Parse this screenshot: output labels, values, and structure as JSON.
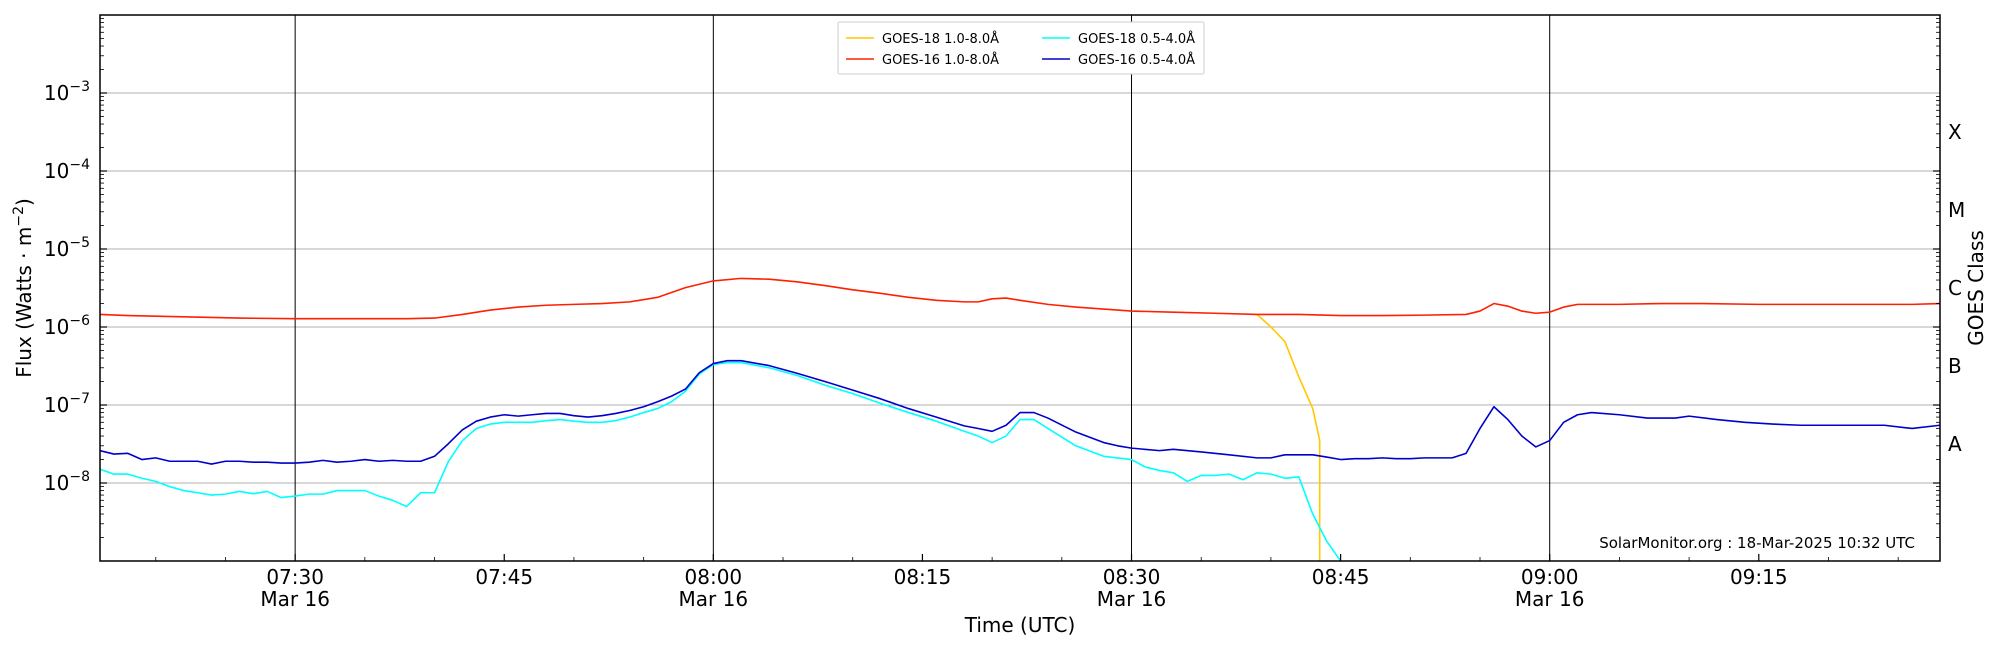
{
  "chart_data": {
    "type": "line",
    "xlabel": "Time (UTC)",
    "ylabel_prefix": "Flux (Watts · m",
    "ylabel_exp": "−2",
    "ylabel_suffix": ")",
    "right_label": "GOES Class",
    "credit": "SolarMonitor.org : 18-Mar-2025 10:32 UTC",
    "x_range_minutes": [
      "07:16",
      "09:28"
    ],
    "y_scale": "log",
    "ylim": [
      1e-09,
      0.01
    ],
    "grid": "horizontal at each decade",
    "legend_position": "top-center",
    "y_ticks": [
      {
        "mantissa": "10",
        "exp": "−8",
        "value": 1e-08
      },
      {
        "mantissa": "10",
        "exp": "−7",
        "value": 1e-07
      },
      {
        "mantissa": "10",
        "exp": "−6",
        "value": 1e-06
      },
      {
        "mantissa": "10",
        "exp": "−5",
        "value": 1e-05
      },
      {
        "mantissa": "10",
        "exp": "−4",
        "value": 0.0001
      },
      {
        "mantissa": "10",
        "exp": "−3",
        "value": 0.001
      }
    ],
    "x_ticks": [
      {
        "time": "07:30",
        "label": "07:30",
        "date": "Mar 16"
      },
      {
        "time": "07:45",
        "label": "07:45",
        "date": ""
      },
      {
        "time": "08:00",
        "label": "08:00",
        "date": "Mar 16"
      },
      {
        "time": "08:15",
        "label": "08:15",
        "date": ""
      },
      {
        "time": "08:30",
        "label": "08:30",
        "date": "Mar 16"
      },
      {
        "time": "08:45",
        "label": "08:45",
        "date": ""
      },
      {
        "time": "09:00",
        "label": "09:00",
        "date": "Mar 16"
      },
      {
        "time": "09:15",
        "label": "09:15",
        "date": ""
      }
    ],
    "vertical_lines": [
      "07:30",
      "08:00",
      "08:30",
      "09:00"
    ],
    "goes_classes": [
      {
        "label": "X",
        "value": 0.0001
      },
      {
        "label": "M",
        "value": 1e-05
      },
      {
        "label": "C",
        "value": 1e-06
      },
      {
        "label": "B",
        "value": 1e-07
      },
      {
        "label": "A",
        "value": 1e-08
      }
    ],
    "series": [
      {
        "name": "GOES-18 1.0-8.0Å",
        "color": "#ffc800",
        "points": [
          [
            "08:39",
            1.45e-06
          ],
          [
            "08:40",
            1e-06
          ],
          [
            "08:41",
            6.5e-07
          ],
          [
            "08:42",
            2.3e-07
          ],
          [
            "08:43",
            9e-08
          ],
          [
            "08:43.5",
            3.5e-08
          ],
          [
            "08:43.5",
            1e-09
          ]
        ]
      },
      {
        "name": "GOES-16 1.0-8.0Å",
        "color": "#ff2000",
        "points": [
          [
            "07:16",
            1.45e-06
          ],
          [
            "07:18",
            1.4e-06
          ],
          [
            "07:22",
            1.35e-06
          ],
          [
            "07:26",
            1.3e-06
          ],
          [
            "07:30",
            1.28e-06
          ],
          [
            "07:34",
            1.28e-06
          ],
          [
            "07:38",
            1.28e-06
          ],
          [
            "07:40",
            1.3e-06
          ],
          [
            "07:42",
            1.45e-06
          ],
          [
            "07:44",
            1.65e-06
          ],
          [
            "07:46",
            1.8e-06
          ],
          [
            "07:48",
            1.9e-06
          ],
          [
            "07:50",
            1.95e-06
          ],
          [
            "07:52",
            2e-06
          ],
          [
            "07:54",
            2.1e-06
          ],
          [
            "07:56",
            2.4e-06
          ],
          [
            "07:58",
            3.2e-06
          ],
          [
            "08:00",
            3.9e-06
          ],
          [
            "08:02",
            4.2e-06
          ],
          [
            "08:04",
            4.1e-06
          ],
          [
            "08:06",
            3.8e-06
          ],
          [
            "08:08",
            3.4e-06
          ],
          [
            "08:10",
            3e-06
          ],
          [
            "08:12",
            2.7e-06
          ],
          [
            "08:14",
            2.4e-06
          ],
          [
            "08:16",
            2.2e-06
          ],
          [
            "08:18",
            2.1e-06
          ],
          [
            "08:19",
            2.1e-06
          ],
          [
            "08:20",
            2.3e-06
          ],
          [
            "08:21",
            2.35e-06
          ],
          [
            "08:22",
            2.2e-06
          ],
          [
            "08:24",
            1.95e-06
          ],
          [
            "08:26",
            1.8e-06
          ],
          [
            "08:28",
            1.7e-06
          ],
          [
            "08:30",
            1.6e-06
          ],
          [
            "08:33",
            1.55e-06
          ],
          [
            "08:36",
            1.5e-06
          ],
          [
            "08:39",
            1.45e-06
          ],
          [
            "08:42",
            1.45e-06
          ],
          [
            "08:45",
            1.4e-06
          ],
          [
            "08:48",
            1.4e-06
          ],
          [
            "08:51",
            1.42e-06
          ],
          [
            "08:54",
            1.45e-06
          ],
          [
            "08:55",
            1.6e-06
          ],
          [
            "08:56",
            2e-06
          ],
          [
            "08:57",
            1.85e-06
          ],
          [
            "08:58",
            1.6e-06
          ],
          [
            "08:59",
            1.5e-06
          ],
          [
            "09:00",
            1.55e-06
          ],
          [
            "09:01",
            1.8e-06
          ],
          [
            "09:02",
            1.95e-06
          ],
          [
            "09:05",
            1.95e-06
          ],
          [
            "09:08",
            2e-06
          ],
          [
            "09:11",
            2e-06
          ],
          [
            "09:15",
            1.95e-06
          ],
          [
            "09:19",
            1.95e-06
          ],
          [
            "09:23",
            1.95e-06
          ],
          [
            "09:26",
            1.95e-06
          ],
          [
            "09:28",
            2e-06
          ]
        ]
      },
      {
        "name": "GOES-18 0.5-4.0Å",
        "color": "#00ffff",
        "points": [
          [
            "07:16",
            1.5e-08
          ],
          [
            "07:17",
            1.3e-08
          ],
          [
            "07:18",
            1.3e-08
          ],
          [
            "07:19",
            1.15e-08
          ],
          [
            "07:20",
            1.05e-08
          ],
          [
            "07:21",
            9e-09
          ],
          [
            "07:22",
            8e-09
          ],
          [
            "07:23",
            7.5e-09
          ],
          [
            "07:24",
            7e-09
          ],
          [
            "07:25",
            7.2e-09
          ],
          [
            "07:26",
            7.8e-09
          ],
          [
            "07:27",
            7.3e-09
          ],
          [
            "07:28",
            7.8e-09
          ],
          [
            "07:29",
            6.5e-09
          ],
          [
            "07:30",
            6.8e-09
          ],
          [
            "07:31",
            7.2e-09
          ],
          [
            "07:32",
            7.2e-09
          ],
          [
            "07:33",
            8e-09
          ],
          [
            "07:34",
            8e-09
          ],
          [
            "07:35",
            8e-09
          ],
          [
            "07:36",
            6.8e-09
          ],
          [
            "07:37",
            6e-09
          ],
          [
            "07:38",
            5e-09
          ],
          [
            "07:39",
            7.5e-09
          ],
          [
            "07:40",
            7.5e-09
          ],
          [
            "07:41",
            1.9e-08
          ],
          [
            "07:42",
            3.5e-08
          ],
          [
            "07:43",
            5e-08
          ],
          [
            "07:44",
            5.7e-08
          ],
          [
            "07:45",
            6e-08
          ],
          [
            "07:46",
            6e-08
          ],
          [
            "07:47",
            6e-08
          ],
          [
            "07:48",
            6.3e-08
          ],
          [
            "07:49",
            6.5e-08
          ],
          [
            "07:50",
            6.2e-08
          ],
          [
            "07:51",
            6e-08
          ],
          [
            "07:52",
            6e-08
          ],
          [
            "07:53",
            6.3e-08
          ],
          [
            "07:54",
            7e-08
          ],
          [
            "07:55",
            8e-08
          ],
          [
            "07:56",
            9e-08
          ],
          [
            "07:57",
            1.1e-07
          ],
          [
            "07:58",
            1.5e-07
          ],
          [
            "07:59",
            2.5e-07
          ],
          [
            "08:00",
            3.3e-07
          ],
          [
            "08:01",
            3.5e-07
          ],
          [
            "08:02",
            3.5e-07
          ],
          [
            "08:04",
            3e-07
          ],
          [
            "08:06",
            2.4e-07
          ],
          [
            "08:08",
            1.8e-07
          ],
          [
            "08:10",
            1.4e-07
          ],
          [
            "08:12",
            1.05e-07
          ],
          [
            "08:14",
            8e-08
          ],
          [
            "08:16",
            6.2e-08
          ],
          [
            "08:18",
            4.6e-08
          ],
          [
            "08:19",
            4e-08
          ],
          [
            "08:20",
            3.3e-08
          ],
          [
            "08:21",
            4e-08
          ],
          [
            "08:22",
            6.5e-08
          ],
          [
            "08:23",
            6.5e-08
          ],
          [
            "08:24",
            5e-08
          ],
          [
            "08:26",
            3e-08
          ],
          [
            "08:28",
            2.2e-08
          ],
          [
            "08:30",
            2e-08
          ],
          [
            "08:31",
            1.6e-08
          ],
          [
            "08:32",
            1.45e-08
          ],
          [
            "08:33",
            1.35e-08
          ],
          [
            "08:34",
            1.05e-08
          ],
          [
            "08:35",
            1.25e-08
          ],
          [
            "08:36",
            1.25e-08
          ],
          [
            "08:37",
            1.3e-08
          ],
          [
            "08:38",
            1.1e-08
          ],
          [
            "08:39",
            1.35e-08
          ],
          [
            "08:40",
            1.3e-08
          ],
          [
            "08:41",
            1.15e-08
          ],
          [
            "08:42",
            1.2e-08
          ],
          [
            "08:43",
            4e-09
          ],
          [
            "08:44",
            1.8e-09
          ],
          [
            "08:45",
            1e-09
          ]
        ]
      },
      {
        "name": "GOES-16 0.5-4.0Å",
        "color": "#0000cc",
        "points": [
          [
            "07:16",
            2.6e-08
          ],
          [
            "07:17",
            2.35e-08
          ],
          [
            "07:18",
            2.4e-08
          ],
          [
            "07:19",
            2e-08
          ],
          [
            "07:20",
            2.1e-08
          ],
          [
            "07:21",
            1.9e-08
          ],
          [
            "07:22",
            1.9e-08
          ],
          [
            "07:23",
            1.9e-08
          ],
          [
            "07:24",
            1.75e-08
          ],
          [
            "07:25",
            1.9e-08
          ],
          [
            "07:26",
            1.9e-08
          ],
          [
            "07:27",
            1.85e-08
          ],
          [
            "07:28",
            1.85e-08
          ],
          [
            "07:29",
            1.8e-08
          ],
          [
            "07:30",
            1.8e-08
          ],
          [
            "07:31",
            1.85e-08
          ],
          [
            "07:32",
            1.95e-08
          ],
          [
            "07:33",
            1.85e-08
          ],
          [
            "07:34",
            1.9e-08
          ],
          [
            "07:35",
            2e-08
          ],
          [
            "07:36",
            1.9e-08
          ],
          [
            "07:37",
            1.95e-08
          ],
          [
            "07:38",
            1.9e-08
          ],
          [
            "07:39",
            1.9e-08
          ],
          [
            "07:40",
            2.2e-08
          ],
          [
            "07:41",
            3.2e-08
          ],
          [
            "07:42",
            4.8e-08
          ],
          [
            "07:43",
            6.2e-08
          ],
          [
            "07:44",
            7e-08
          ],
          [
            "07:45",
            7.5e-08
          ],
          [
            "07:46",
            7.2e-08
          ],
          [
            "07:47",
            7.5e-08
          ],
          [
            "07:48",
            7.8e-08
          ],
          [
            "07:49",
            7.8e-08
          ],
          [
            "07:50",
            7.3e-08
          ],
          [
            "07:51",
            7e-08
          ],
          [
            "07:52",
            7.3e-08
          ],
          [
            "07:53",
            7.8e-08
          ],
          [
            "07:54",
            8.5e-08
          ],
          [
            "07:55",
            9.5e-08
          ],
          [
            "07:56",
            1.1e-07
          ],
          [
            "07:57",
            1.3e-07
          ],
          [
            "07:58",
            1.6e-07
          ],
          [
            "07:59",
            2.6e-07
          ],
          [
            "08:00",
            3.4e-07
          ],
          [
            "08:01",
            3.7e-07
          ],
          [
            "08:02",
            3.7e-07
          ],
          [
            "08:04",
            3.2e-07
          ],
          [
            "08:06",
            2.55e-07
          ],
          [
            "08:08",
            2e-07
          ],
          [
            "08:10",
            1.55e-07
          ],
          [
            "08:12",
            1.2e-07
          ],
          [
            "08:14",
            9e-08
          ],
          [
            "08:16",
            7e-08
          ],
          [
            "08:18",
            5.4e-08
          ],
          [
            "08:19",
            5e-08
          ],
          [
            "08:20",
            4.6e-08
          ],
          [
            "08:21",
            5.5e-08
          ],
          [
            "08:22",
            8e-08
          ],
          [
            "08:23",
            8e-08
          ],
          [
            "08:24",
            6.8e-08
          ],
          [
            "08:26",
            4.5e-08
          ],
          [
            "08:28",
            3.3e-08
          ],
          [
            "08:29",
            3e-08
          ],
          [
            "08:30",
            2.8e-08
          ],
          [
            "08:32",
            2.6e-08
          ],
          [
            "08:33",
            2.7e-08
          ],
          [
            "08:35",
            2.5e-08
          ],
          [
            "08:37",
            2.3e-08
          ],
          [
            "08:39",
            2.1e-08
          ],
          [
            "08:40",
            2.1e-08
          ],
          [
            "08:41",
            2.3e-08
          ],
          [
            "08:42",
            2.3e-08
          ],
          [
            "08:43",
            2.3e-08
          ],
          [
            "08:44",
            2.15e-08
          ],
          [
            "08:45",
            2e-08
          ],
          [
            "08:46",
            2.05e-08
          ],
          [
            "08:47",
            2.05e-08
          ],
          [
            "08:48",
            2.1e-08
          ],
          [
            "08:49",
            2.05e-08
          ],
          [
            "08:50",
            2.05e-08
          ],
          [
            "08:51",
            2.1e-08
          ],
          [
            "08:52",
            2.1e-08
          ],
          [
            "08:53",
            2.1e-08
          ],
          [
            "08:54",
            2.4e-08
          ],
          [
            "08:55",
            5e-08
          ],
          [
            "08:56",
            9.5e-08
          ],
          [
            "08:57",
            6.5e-08
          ],
          [
            "08:58",
            4e-08
          ],
          [
            "08:59",
            2.9e-08
          ],
          [
            "09:00",
            3.5e-08
          ],
          [
            "09:01",
            6e-08
          ],
          [
            "09:02",
            7.5e-08
          ],
          [
            "09:03",
            8e-08
          ],
          [
            "09:05",
            7.5e-08
          ],
          [
            "09:07",
            6.8e-08
          ],
          [
            "09:09",
            6.8e-08
          ],
          [
            "09:10",
            7.2e-08
          ],
          [
            "09:12",
            6.5e-08
          ],
          [
            "09:14",
            6e-08
          ],
          [
            "09:16",
            5.7e-08
          ],
          [
            "09:18",
            5.5e-08
          ],
          [
            "09:20",
            5.5e-08
          ],
          [
            "09:22",
            5.5e-08
          ],
          [
            "09:24",
            5.5e-08
          ],
          [
            "09:26",
            5e-08
          ],
          [
            "09:28",
            5.5e-08
          ]
        ]
      }
    ]
  }
}
